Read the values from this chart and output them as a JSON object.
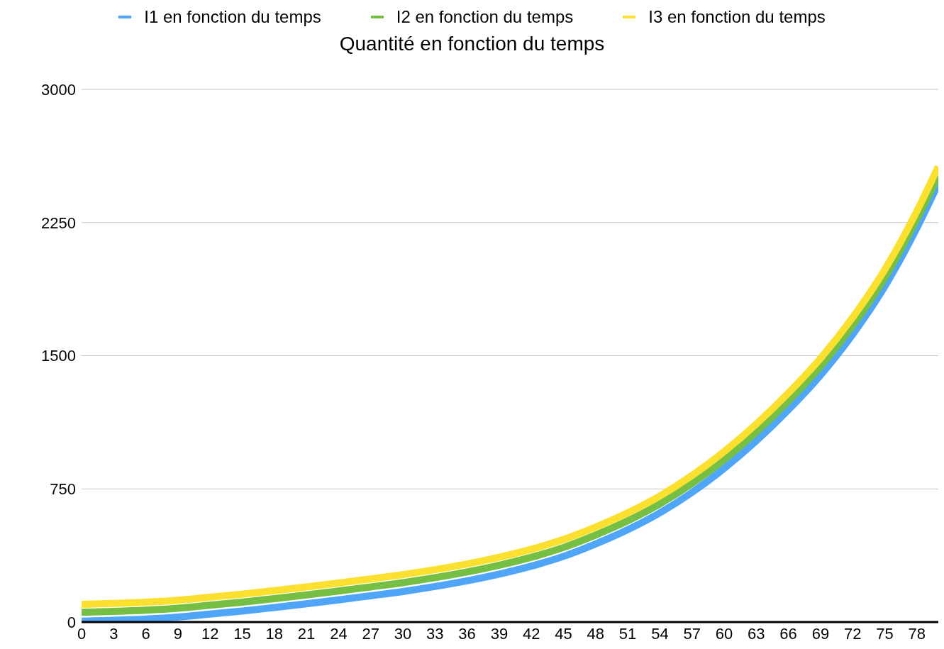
{
  "chart_data": {
    "type": "line",
    "title": "Quantité en fonction du temps",
    "x": [
      0,
      3,
      6,
      9,
      12,
      15,
      18,
      21,
      24,
      27,
      30,
      33,
      36,
      39,
      42,
      45,
      48,
      51,
      54,
      57,
      60,
      63,
      66,
      69,
      72,
      75,
      78,
      80
    ],
    "series": [
      {
        "name": "I1 en fonction du temps",
        "color": "#4fa6f8",
        "values": [
          5,
          10,
          17,
          28,
          45,
          62,
          82,
          103,
          125,
          148,
          172,
          200,
          232,
          270,
          315,
          370,
          440,
          520,
          615,
          730,
          865,
          1020,
          1195,
          1390,
          1620,
          1890,
          2220,
          2470
        ]
      },
      {
        "name": "I2 en fonction du temps",
        "color": "#74bf44",
        "values": [
          55,
          60,
          67,
          78,
          95,
          112,
          132,
          153,
          175,
          198,
          222,
          250,
          282,
          320,
          365,
          420,
          490,
          570,
          665,
          780,
          915,
          1070,
          1245,
          1440,
          1670,
          1940,
          2270,
          2515
        ]
      },
      {
        "name": "I3 en fonction du temps",
        "color": "#fbe030",
        "values": [
          100,
          105,
          112,
          123,
          140,
          157,
          177,
          198,
          220,
          243,
          267,
          295,
          327,
          365,
          410,
          465,
          535,
          615,
          710,
          825,
          960,
          1115,
          1290,
          1485,
          1715,
          1985,
          2315,
          2565
        ]
      }
    ],
    "xlim": [
      0,
      80
    ],
    "xticks": [
      0,
      3,
      6,
      9,
      12,
      15,
      18,
      21,
      24,
      27,
      30,
      33,
      36,
      39,
      42,
      45,
      48,
      51,
      54,
      57,
      60,
      63,
      66,
      69,
      72,
      75,
      78
    ],
    "ylim": [
      0,
      3000
    ],
    "yticks": [
      0,
      750,
      1500,
      2250,
      3000
    ],
    "grid": "y",
    "legend": "top",
    "marker": "none",
    "line_style": "solid"
  }
}
